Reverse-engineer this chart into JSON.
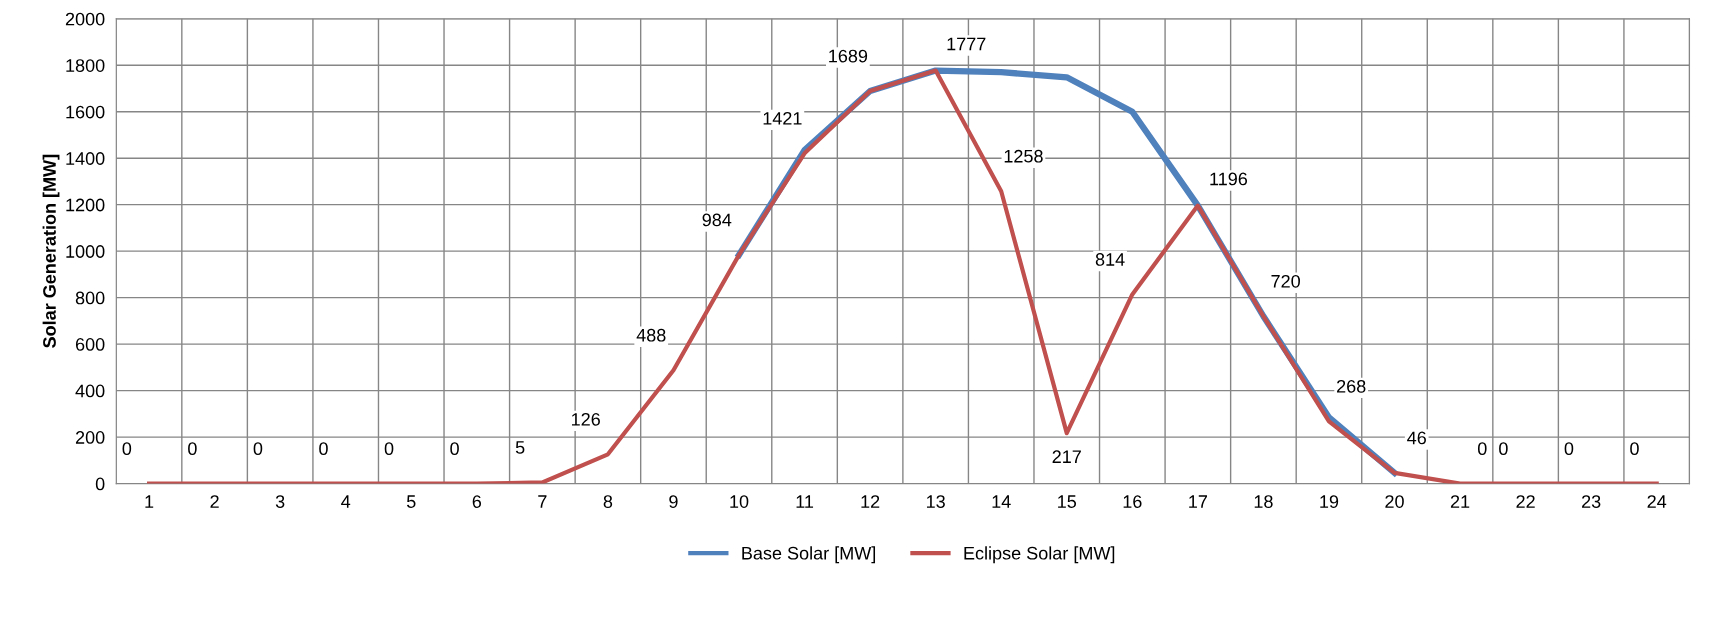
{
  "chart_data": {
    "type": "line",
    "ylabel": "Solar Generation [MW]",
    "categories": [
      "1",
      "2",
      "3",
      "4",
      "5",
      "6",
      "7",
      "8",
      "9",
      "10",
      "11",
      "12",
      "13",
      "14",
      "15",
      "16",
      "17",
      "18",
      "19",
      "20",
      "21",
      "22",
      "23",
      "24"
    ],
    "series": [
      {
        "name": "Base Solar [MW]",
        "color": "#4f81bd",
        "values": [
          null,
          null,
          null,
          null,
          null,
          null,
          null,
          null,
          null,
          984,
          1435,
          1689,
          1777,
          1770,
          1748,
          1600,
          1196,
          720,
          285,
          46,
          null,
          null,
          null,
          null
        ]
      },
      {
        "name": "Eclipse Solar [MW]",
        "color": "#c0504d",
        "values": [
          0,
          0,
          0,
          0,
          0,
          0,
          5,
          126,
          488,
          984,
          1421,
          1689,
          1777,
          1258,
          217,
          814,
          1196,
          720,
          268,
          46,
          0,
          0,
          0,
          0
        ],
        "value_labels": [
          "0",
          "0",
          "0",
          "0",
          "0",
          "0",
          "5",
          "126",
          "488",
          "984",
          "1421",
          "1689",
          "1777",
          "1258",
          "217",
          "814",
          "1196",
          "720",
          "268",
          "46",
          "0",
          "0",
          "0",
          "0"
        ]
      }
    ],
    "ylim": [
      0,
      2000
    ],
    "yticks": [
      0,
      200,
      400,
      600,
      800,
      1000,
      1200,
      1400,
      1600,
      1800,
      2000
    ],
    "grid": true,
    "legend": "bottom",
    "marker": "none",
    "line_style": "solid"
  }
}
